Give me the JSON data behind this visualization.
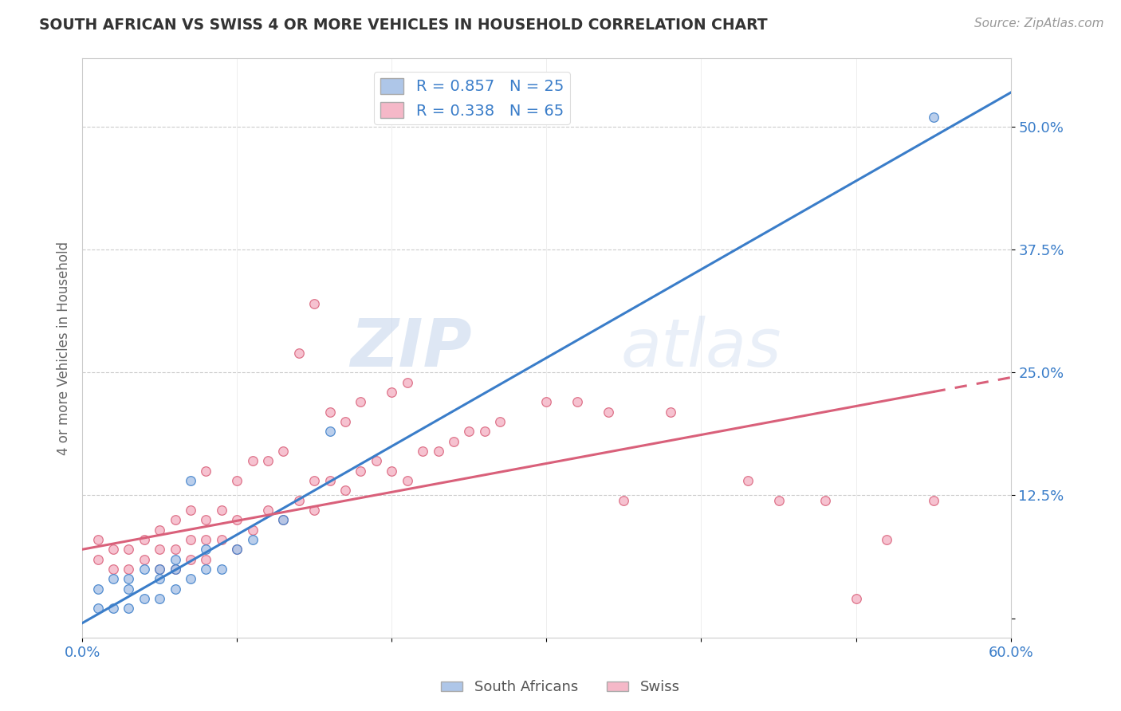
{
  "title": "SOUTH AFRICAN VS SWISS 4 OR MORE VEHICLES IN HOUSEHOLD CORRELATION CHART",
  "source": "Source: ZipAtlas.com",
  "ylabel": "4 or more Vehicles in Household",
  "xlim": [
    0.0,
    0.6
  ],
  "ylim": [
    -0.02,
    0.57
  ],
  "yticks": [
    0.0,
    0.125,
    0.25,
    0.375,
    0.5
  ],
  "ytick_labels": [
    "",
    "12.5%",
    "25.0%",
    "37.5%",
    "50.0%"
  ],
  "xticks": [
    0.0,
    0.1,
    0.2,
    0.3,
    0.4,
    0.5,
    0.6
  ],
  "xtick_labels": [
    "0.0%",
    "",
    "",
    "",
    "",
    "",
    "60.0%"
  ],
  "south_african_R": 0.857,
  "south_african_N": 25,
  "swiss_R": 0.338,
  "swiss_N": 65,
  "sa_color": "#aec6e8",
  "swiss_color": "#f5b8c8",
  "sa_line_color": "#3a7dc9",
  "swiss_line_color": "#d9607a",
  "legend_text_color": "#3a7dc9",
  "watermark_zip": "ZIP",
  "watermark_atlas": "atlas",
  "background_color": "#ffffff",
  "sa_line_x0": 0.0,
  "sa_line_y0": -0.005,
  "sa_line_x1": 0.6,
  "sa_line_y1": 0.535,
  "swiss_line_x0": 0.0,
  "swiss_line_y0": 0.07,
  "swiss_line_x1": 0.6,
  "swiss_line_y1": 0.245,
  "swiss_line_solid_end": 0.55,
  "sa_x": [
    0.01,
    0.01,
    0.02,
    0.02,
    0.03,
    0.03,
    0.03,
    0.04,
    0.04,
    0.05,
    0.05,
    0.05,
    0.06,
    0.06,
    0.06,
    0.07,
    0.07,
    0.08,
    0.08,
    0.09,
    0.1,
    0.11,
    0.13,
    0.16,
    0.55
  ],
  "sa_y": [
    0.01,
    0.03,
    0.01,
    0.04,
    0.01,
    0.03,
    0.04,
    0.02,
    0.05,
    0.02,
    0.04,
    0.05,
    0.03,
    0.05,
    0.06,
    0.04,
    0.14,
    0.05,
    0.07,
    0.05,
    0.07,
    0.08,
    0.1,
    0.19,
    0.51
  ],
  "swiss_x": [
    0.01,
    0.01,
    0.02,
    0.02,
    0.03,
    0.03,
    0.04,
    0.04,
    0.05,
    0.05,
    0.05,
    0.06,
    0.06,
    0.06,
    0.07,
    0.07,
    0.07,
    0.08,
    0.08,
    0.08,
    0.08,
    0.09,
    0.09,
    0.1,
    0.1,
    0.1,
    0.11,
    0.11,
    0.12,
    0.12,
    0.13,
    0.13,
    0.14,
    0.14,
    0.15,
    0.15,
    0.15,
    0.16,
    0.16,
    0.17,
    0.17,
    0.18,
    0.18,
    0.19,
    0.2,
    0.2,
    0.21,
    0.21,
    0.22,
    0.23,
    0.24,
    0.25,
    0.26,
    0.27,
    0.3,
    0.32,
    0.34,
    0.35,
    0.38,
    0.43,
    0.45,
    0.48,
    0.5,
    0.52,
    0.55
  ],
  "swiss_y": [
    0.06,
    0.08,
    0.05,
    0.07,
    0.05,
    0.07,
    0.06,
    0.08,
    0.05,
    0.07,
    0.09,
    0.05,
    0.07,
    0.1,
    0.06,
    0.08,
    0.11,
    0.06,
    0.08,
    0.1,
    0.15,
    0.08,
    0.11,
    0.07,
    0.1,
    0.14,
    0.09,
    0.16,
    0.11,
    0.16,
    0.1,
    0.17,
    0.12,
    0.27,
    0.11,
    0.14,
    0.32,
    0.14,
    0.21,
    0.13,
    0.2,
    0.15,
    0.22,
    0.16,
    0.15,
    0.23,
    0.14,
    0.24,
    0.17,
    0.17,
    0.18,
    0.19,
    0.19,
    0.2,
    0.22,
    0.22,
    0.21,
    0.12,
    0.21,
    0.14,
    0.12,
    0.12,
    0.02,
    0.08,
    0.12
  ]
}
